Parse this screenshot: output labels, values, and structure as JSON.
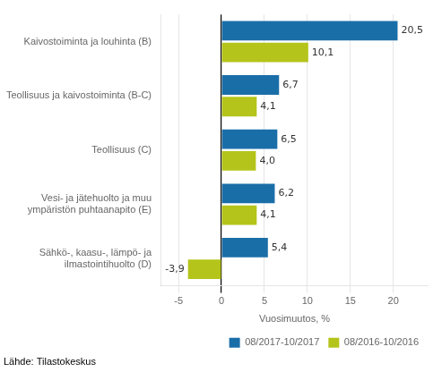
{
  "chart_data": {
    "type": "bar",
    "orientation": "horizontal",
    "categories": [
      "Kaivostoiminta ja louhinta (B)",
      "Teollisuus ja kaivostoiminta (B-C)",
      "Teollisuus (C)",
      "Vesi- ja jätehuolto ja muu\nympäristön puhtaanapito (E)",
      "Sähkö-, kaasu-, lämpö- ja\nilmastointihuolto (D)"
    ],
    "series": [
      {
        "name": "08/2017-10/2017",
        "color": "#1a6ea8",
        "values": [
          20.5,
          6.7,
          6.5,
          6.2,
          5.4
        ],
        "value_labels": [
          "20,5",
          "6,7",
          "6,5",
          "6,2",
          "5,4"
        ]
      },
      {
        "name": "08/2016-10/2016",
        "color": "#b5c41a",
        "values": [
          10.1,
          4.1,
          4.0,
          4.1,
          -3.9
        ],
        "value_labels": [
          "10,1",
          "4,1",
          "4,0",
          "4,1",
          "-3,9"
        ]
      }
    ],
    "xlabel": "Vuosimuutos, %",
    "xlim": [
      -7,
      24
    ],
    "xticks": [
      -5,
      0,
      5,
      10,
      15,
      20
    ],
    "grid": true,
    "legend": "lower right",
    "data_labels": true,
    "footnote": "Lähde: Tilastokeskus"
  }
}
